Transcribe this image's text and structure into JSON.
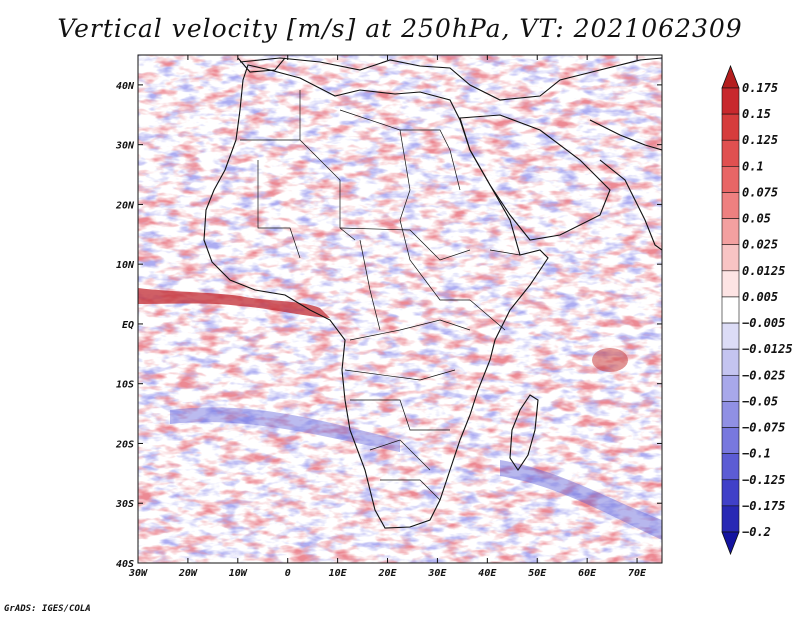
{
  "title": "Vertical velocity [m/s] at 250hPa, VT: 2021062309",
  "credit": "GrADS: IGES/COLA",
  "map": {
    "lon_range": [
      -30,
      75
    ],
    "lat_range": [
      -40,
      45
    ],
    "lon_ticks": [
      "30W",
      "20W",
      "10W",
      "0",
      "10E",
      "20E",
      "30E",
      "40E",
      "50E",
      "60E",
      "70E"
    ],
    "lat_ticks": [
      "40N",
      "30N",
      "20N",
      "10N",
      "EQ",
      "10S",
      "20S",
      "30S",
      "40S"
    ],
    "field_colors": {
      "ascent": "#d8404a",
      "descent": "#6a6ae0",
      "neutral": "#ffffff"
    }
  },
  "colorbar": {
    "levels": [
      "0.175",
      "0.15",
      "0.125",
      "0.1",
      "0.075",
      "0.05",
      "0.025",
      "0.0125",
      "0.005",
      "−0.005",
      "−0.0125",
      "−0.025",
      "−0.05",
      "−0.075",
      "−0.1",
      "−0.125",
      "−0.175",
      "−0.2"
    ],
    "colors": [
      "#b41e1e",
      "#c8282d",
      "#d63c3c",
      "#e05050",
      "#e86666",
      "#ee8080",
      "#f3a0a0",
      "#f8c4c4",
      "#fde4e4",
      "#ffffff",
      "#dcdcf6",
      "#c4c4f0",
      "#a8a8ea",
      "#9090e4",
      "#7878de",
      "#5c5cd4",
      "#4040c8",
      "#2828b4",
      "#1414a0"
    ]
  }
}
